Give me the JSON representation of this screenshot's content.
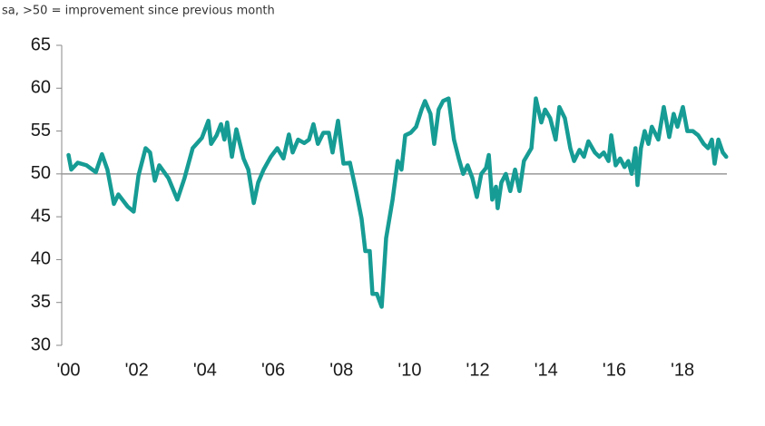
{
  "chart_data": {
    "type": "line",
    "subtitle": "sa, >50 = improvement since previous month",
    "color": "#169c94",
    "x": [
      2000.0,
      2000.08,
      2000.27,
      2000.53,
      2000.8,
      2000.98,
      2001.14,
      2001.33,
      2001.46,
      2001.73,
      2001.91,
      2002.05,
      2002.26,
      2002.39,
      2002.53,
      2002.66,
      2002.93,
      2003.19,
      2003.4,
      2003.64,
      2003.91,
      2004.1,
      2004.18,
      2004.34,
      2004.47,
      2004.57,
      2004.65,
      2004.79,
      2004.92,
      2005.13,
      2005.27,
      2005.43,
      2005.56,
      2005.72,
      2005.93,
      2006.12,
      2006.3,
      2006.46,
      2006.57,
      2006.73,
      2006.91,
      2007.05,
      2007.18,
      2007.31,
      2007.47,
      2007.63,
      2007.74,
      2007.9,
      2008.06,
      2008.25,
      2008.43,
      2008.59,
      2008.7,
      2008.83,
      2008.91,
      2009.04,
      2009.18,
      2009.31,
      2009.5,
      2009.65,
      2009.76,
      2009.87,
      2010.03,
      2010.19,
      2010.35,
      2010.45,
      2010.61,
      2010.72,
      2010.85,
      2010.98,
      2011.14,
      2011.3,
      2011.44,
      2011.57,
      2011.7,
      2011.84,
      2011.97,
      2012.1,
      2012.24,
      2012.32,
      2012.42,
      2012.53,
      2012.58,
      2012.69,
      2012.82,
      2012.95,
      2013.09,
      2013.22,
      2013.35,
      2013.57,
      2013.7,
      2013.86,
      2013.97,
      2014.12,
      2014.28,
      2014.39,
      2014.55,
      2014.71,
      2014.82,
      2014.98,
      2015.11,
      2015.24,
      2015.43,
      2015.56,
      2015.69,
      2015.83,
      2015.91,
      2016.04,
      2016.17,
      2016.3,
      2016.41,
      2016.51,
      2016.62,
      2016.68,
      2016.78,
      2016.89,
      2017.0,
      2017.1,
      2017.29,
      2017.45,
      2017.61,
      2017.74,
      2017.85,
      2018.01,
      2018.14,
      2018.3,
      2018.46,
      2018.62,
      2018.75,
      2018.86,
      2018.94,
      2019.05,
      2019.18,
      2019.28
    ],
    "values": [
      52.2,
      50.5,
      51.3,
      51.0,
      50.2,
      52.3,
      50.5,
      46.5,
      47.6,
      46.2,
      45.6,
      49.8,
      53.0,
      52.5,
      49.2,
      51.0,
      49.5,
      47.0,
      49.5,
      53.0,
      54.2,
      56.2,
      53.5,
      54.5,
      55.8,
      54.0,
      56.0,
      52.0,
      55.2,
      51.8,
      50.5,
      46.6,
      49.0,
      50.5,
      52.0,
      53.0,
      51.8,
      54.6,
      52.5,
      54.0,
      53.6,
      54.0,
      55.8,
      53.5,
      54.8,
      54.8,
      52.5,
      56.2,
      51.2,
      51.3,
      48.0,
      44.8,
      41.0,
      41.0,
      36.0,
      36.0,
      34.5,
      42.5,
      47.0,
      51.5,
      50.5,
      54.5,
      54.8,
      55.5,
      57.5,
      58.5,
      57.0,
      53.5,
      57.5,
      58.5,
      58.8,
      54.0,
      51.8,
      50.0,
      51.0,
      49.5,
      47.3,
      50.0,
      50.7,
      52.2,
      47.0,
      48.5,
      46.0,
      49.0,
      50.0,
      48.0,
      50.5,
      48.0,
      51.5,
      53.0,
      58.8,
      56.0,
      57.5,
      56.5,
      54.0,
      57.8,
      56.5,
      53.0,
      51.5,
      52.8,
      52.0,
      53.8,
      52.5,
      52.0,
      52.5,
      51.5,
      54.5,
      51.0,
      51.8,
      50.8,
      51.5,
      50.0,
      53.0,
      48.7,
      53.0,
      55.0,
      53.5,
      55.5,
      54.0,
      57.8,
      54.3,
      57.0,
      55.5,
      57.8,
      55.0,
      55.0,
      54.5,
      53.5,
      53.0,
      54.0,
      51.2,
      54.0,
      52.5,
      52.0
    ],
    "xlim": [
      1999.8,
      2019.3
    ],
    "xticks": [
      {
        "value": 2000,
        "label": "'00"
      },
      {
        "value": 2002,
        "label": "'02"
      },
      {
        "value": 2004,
        "label": "'04"
      },
      {
        "value": 2006,
        "label": "'06"
      },
      {
        "value": 2008,
        "label": "'08"
      },
      {
        "value": 2010,
        "label": "'10"
      },
      {
        "value": 2012,
        "label": "'12"
      },
      {
        "value": 2014,
        "label": "'14"
      },
      {
        "value": 2016,
        "label": "'16"
      },
      {
        "value": 2018,
        "label": "'18"
      }
    ],
    "ylim": [
      30,
      65
    ],
    "yticks": [
      30,
      35,
      40,
      45,
      50,
      55,
      60,
      65
    ],
    "hline": 50,
    "grid": false
  }
}
